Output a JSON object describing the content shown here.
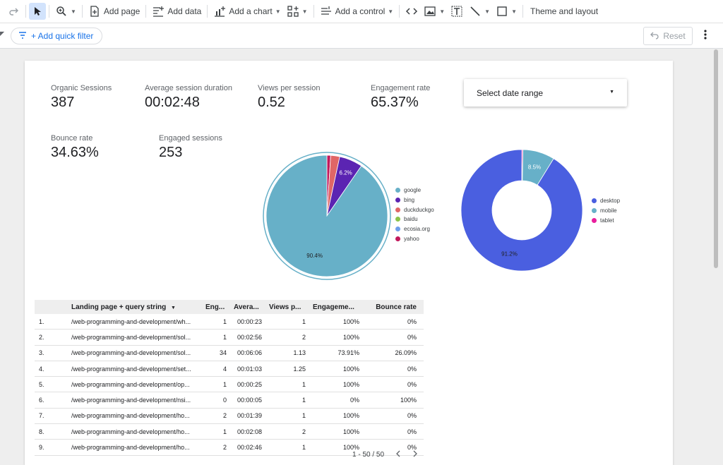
{
  "toolbar": {
    "add_page": "Add page",
    "add_data": "Add data",
    "add_chart": "Add a chart",
    "add_control": "Add a control",
    "theme_layout": "Theme and layout"
  },
  "filterbar": {
    "quick_filter": "+ Add quick filter",
    "reset": "Reset"
  },
  "kpis": [
    {
      "label": "Organic Sessions",
      "value": "387"
    },
    {
      "label": "Average session duration",
      "value": "00:02:48"
    },
    {
      "label": "Views per session",
      "value": "0.52"
    },
    {
      "label": "Engagement rate",
      "value": "65.37%"
    },
    {
      "label": "Bounce rate",
      "value": "34.63%"
    },
    {
      "label": "Engaged sessions",
      "value": "253"
    }
  ],
  "date_range": {
    "label": "Select date range"
  },
  "chart_data": [
    {
      "type": "pie",
      "slices": [
        {
          "name": "google",
          "value": 90.4,
          "label": "90.4%",
          "color": "#67b0c8"
        },
        {
          "name": "bing",
          "value": 6.2,
          "label": "6.2%",
          "color": "#5b24b2"
        },
        {
          "name": "duckduckgo",
          "value": 2.4,
          "label": "",
          "color": "#e06666"
        },
        {
          "name": "baidu",
          "value": 0.0,
          "label": "",
          "color": "#8bc34a"
        },
        {
          "name": "ecosia.org",
          "value": 0.0,
          "label": "",
          "color": "#6d9eeb"
        },
        {
          "name": "yahoo",
          "value": 1.0,
          "label": "",
          "color": "#c2185b"
        }
      ],
      "legend": "right"
    },
    {
      "type": "donut",
      "slices": [
        {
          "name": "desktop",
          "value": 91.2,
          "label": "91.2%",
          "color": "#4a5fe0"
        },
        {
          "name": "mobile",
          "value": 8.5,
          "label": "8.5%",
          "color": "#67b0c8"
        },
        {
          "name": "tablet",
          "value": 0.3,
          "label": "",
          "color": "#e91e9d"
        }
      ],
      "legend": "right"
    }
  ],
  "table": {
    "headers": [
      "",
      "Landing page + query string",
      "Eng...",
      "Avera...",
      "Views p...",
      "Engageme...",
      "Bounce rate"
    ],
    "sort_indicator": "▼",
    "rows": [
      {
        "idx": "1.",
        "page": "/web-programming-and-development/wh...",
        "eng": "1",
        "avg": "00:00:23",
        "views": "1",
        "rate": "100%",
        "bounce": "0%"
      },
      {
        "idx": "2.",
        "page": "/web-programming-and-development/sol...",
        "eng": "1",
        "avg": "00:02:56",
        "views": "2",
        "rate": "100%",
        "bounce": "0%"
      },
      {
        "idx": "3.",
        "page": "/web-programming-and-development/sol...",
        "eng": "34",
        "avg": "00:06:06",
        "views": "1.13",
        "rate": "73.91%",
        "bounce": "26.09%"
      },
      {
        "idx": "4.",
        "page": "/web-programming-and-development/set...",
        "eng": "4",
        "avg": "00:01:03",
        "views": "1.25",
        "rate": "100%",
        "bounce": "0%"
      },
      {
        "idx": "5.",
        "page": "/web-programming-and-development/op...",
        "eng": "1",
        "avg": "00:00:25",
        "views": "1",
        "rate": "100%",
        "bounce": "0%"
      },
      {
        "idx": "6.",
        "page": "/web-programming-and-development/nsi...",
        "eng": "0",
        "avg": "00:00:05",
        "views": "1",
        "rate": "0%",
        "bounce": "100%"
      },
      {
        "idx": "7.",
        "page": "/web-programming-and-development/ho...",
        "eng": "2",
        "avg": "00:01:39",
        "views": "1",
        "rate": "100%",
        "bounce": "0%"
      },
      {
        "idx": "8.",
        "page": "/web-programming-and-development/ho...",
        "eng": "1",
        "avg": "00:02:08",
        "views": "2",
        "rate": "100%",
        "bounce": "0%"
      },
      {
        "idx": "9.",
        "page": "/web-programming-and-development/ho...",
        "eng": "2",
        "avg": "00:02:46",
        "views": "1",
        "rate": "100%",
        "bounce": "0%"
      }
    ],
    "pagination": "1 - 50 / 50"
  }
}
